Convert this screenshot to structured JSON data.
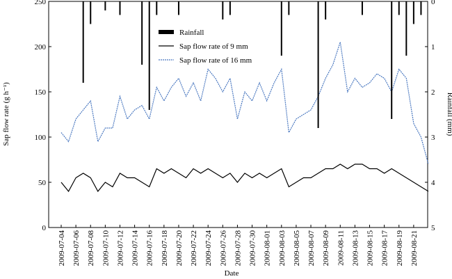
{
  "chart_data": {
    "type": "line",
    "x_label": "Date",
    "y_label": "Sap flow rate (g h⁻¹)",
    "y2_label": "Rainfall (mm)",
    "x": [
      "2009-07-04",
      "2009-07-05",
      "2009-07-06",
      "2009-07-07",
      "2009-07-08",
      "2009-07-09",
      "2009-07-10",
      "2009-07-11",
      "2009-07-12",
      "2009-07-13",
      "2009-07-14",
      "2009-07-15",
      "2009-07-16",
      "2009-07-17",
      "2009-07-18",
      "2009-07-19",
      "2009-07-20",
      "2009-07-21",
      "2009-07-22",
      "2009-07-23",
      "2009-07-24",
      "2009-07-25",
      "2009-07-26",
      "2009-07-27",
      "2009-07-28",
      "2009-07-29",
      "2009-07-30",
      "2009-07-31",
      "2009-08-01",
      "2009-08-02",
      "2009-08-03",
      "2009-08-04",
      "2009-08-05",
      "2009-08-06",
      "2009-08-07",
      "2009-08-08",
      "2009-08-09",
      "2009-08-10",
      "2009-08-11",
      "2009-08-12",
      "2009-08-13",
      "2009-08-14",
      "2009-08-15",
      "2009-08-16",
      "2009-08-17",
      "2009-08-18",
      "2009-08-19",
      "2009-08-20",
      "2009-08-21",
      "2009-08-22",
      "2009-08-23"
    ],
    "xticks": [
      "2009-07-04",
      "2009-07-06",
      "2009-07-08",
      "2009-07-10",
      "2009-07-12",
      "2009-07-14",
      "2009-07-16",
      "2009-07-18",
      "2009-07-20",
      "2009-07-22",
      "2009-07-24",
      "2009-07-26",
      "2009-07-28",
      "2009-07-30",
      "2009-08-01",
      "2009-08-03",
      "2009-08-05",
      "2009-08-07",
      "2009-08-09",
      "2009-08-11",
      "2009-08-13",
      "2009-08-15",
      "2009-08-17",
      "2009-08-19",
      "2009-08-21"
    ],
    "series": [
      {
        "name": "Rainfall",
        "color": "#000000",
        "kind": "bar",
        "axis": "y2",
        "values": [
          0,
          0,
          0,
          1.8,
          0.5,
          0,
          0.2,
          0,
          0.3,
          0,
          0,
          1.4,
          2.4,
          0.3,
          0,
          0,
          0.3,
          0,
          0,
          0,
          0,
          0,
          0.4,
          0.3,
          0,
          0,
          0,
          0,
          0,
          0,
          1.2,
          0.3,
          0,
          0,
          0,
          2.8,
          0.4,
          0,
          0,
          0,
          0,
          0.3,
          0,
          0,
          0,
          2.6,
          0.3,
          1.2,
          0.5,
          0.3,
          0
        ]
      },
      {
        "name": "Sap flow rate of 9 mm",
        "color": "#000000",
        "kind": "line",
        "values": [
          50,
          40,
          55,
          60,
          55,
          40,
          50,
          45,
          60,
          55,
          55,
          50,
          45,
          65,
          60,
          65,
          60,
          55,
          65,
          60,
          65,
          60,
          55,
          60,
          50,
          60,
          55,
          60,
          55,
          60,
          65,
          45,
          50,
          55,
          55,
          60,
          65,
          65,
          70,
          65,
          70,
          70,
          65,
          65,
          60,
          65,
          60,
          55,
          50,
          45,
          40
        ]
      },
      {
        "name": "Sap flow rate of 16 mm",
        "color": "#4a78c0",
        "kind": "line",
        "dash": true,
        "values": [
          105,
          95,
          120,
          130,
          140,
          95,
          110,
          110,
          145,
          120,
          130,
          135,
          120,
          155,
          140,
          155,
          165,
          145,
          160,
          140,
          175,
          165,
          150,
          165,
          120,
          150,
          140,
          160,
          140,
          160,
          175,
          105,
          120,
          125,
          130,
          145,
          165,
          180,
          205,
          150,
          165,
          155,
          160,
          170,
          165,
          150,
          175,
          165,
          115,
          100,
          70
        ]
      }
    ],
    "ylim": [
      0,
      250
    ],
    "yticks": [
      0,
      50,
      100,
      150,
      200,
      250
    ],
    "y2lim": [
      0,
      5
    ],
    "y2ticks": [
      0,
      1,
      2,
      3,
      4,
      5
    ],
    "y2_inverted": true
  }
}
